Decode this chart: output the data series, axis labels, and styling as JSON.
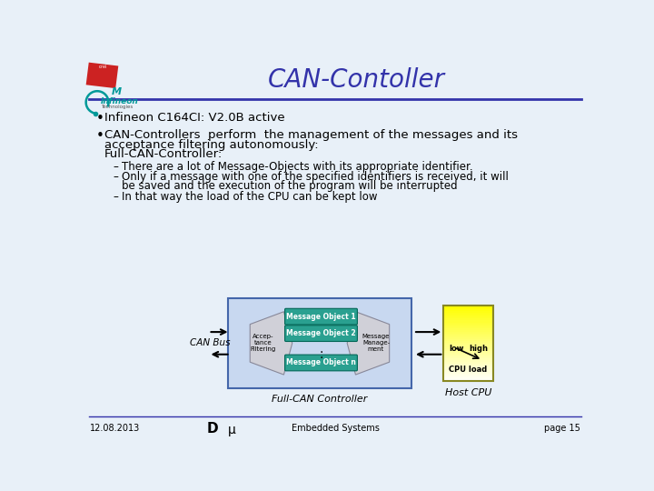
{
  "title": "CAN-Contoller",
  "title_color": "#3333aa",
  "title_fontsize": 20,
  "background_color": "#e8f0f8",
  "header_line_color": "#3333aa",
  "bullet1": "Infineon C164CI: V2.0B active",
  "bullet2_line1": "CAN-Controllers  perform  the management of the messages and its",
  "bullet2_line2": "acceptance filtering autonomously:",
  "bullet2_line3": "Full-CAN-Controller:",
  "sub1": "There are a lot of Message-Objects with its appropriate identifier.",
  "sub2a": "Only if a message with one of the specified identifiers is received, it will",
  "sub2b": "be saved and the execution of the program will be interrupted",
  "sub3": "In that way the load of the CPU can be kept low",
  "footer_date": "12.08.2013",
  "footer_center": "Embedded Systems",
  "footer_right": "page 15",
  "footer_d": "D",
  "footer_mu": "μ",
  "diagram_bg": "#c8d8f0",
  "box_teal": "#2aa090",
  "hexagon_fill": "#c0c0c8",
  "cpu_top": "#ffff80",
  "cpu_bottom": "#ffffff",
  "logo_red": "#cc2222",
  "logo_green": "#009999"
}
